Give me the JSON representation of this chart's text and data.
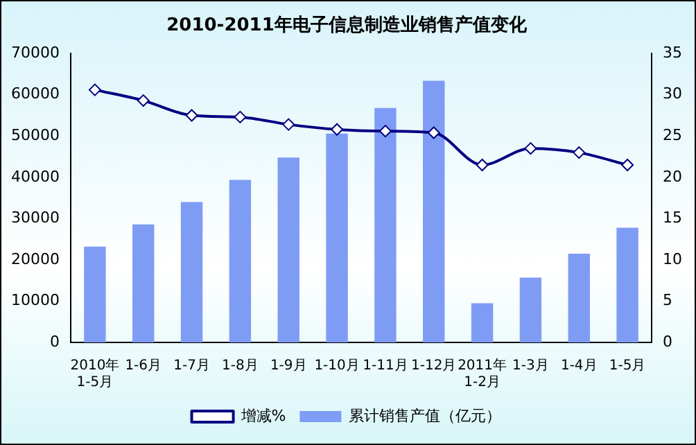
{
  "chart_data": {
    "type": "bar",
    "title": "2010-2011年电子信息制造业销售产值变化",
    "categories": [
      "2010年\n1-5月",
      "1-6月",
      "1-7月",
      "1-8月",
      "1-9月",
      "1-10月",
      "1-11月",
      "1-12月",
      "2011年\n1-2月",
      "1-3月",
      "1-4月",
      "1-5月"
    ],
    "series": [
      {
        "name": "累计销售产值（亿元）",
        "color": "#7f9cf5",
        "values": [
          23200,
          28600,
          34000,
          39400,
          44800,
          50600,
          56800,
          63400,
          9500,
          15700,
          21500,
          27800
        ]
      },
      {
        "name": "增减%",
        "type": "line",
        "axis": "y2",
        "color": "#000080",
        "values": [
          30.6,
          29.3,
          27.5,
          27.3,
          26.4,
          25.8,
          25.6,
          25.4,
          21.5,
          23.5,
          23.0,
          21.5
        ]
      }
    ],
    "ylim": [
      0,
      70000
    ],
    "yticks": [
      0,
      10000,
      20000,
      30000,
      40000,
      50000,
      60000,
      70000
    ],
    "y2lim": [
      0,
      35
    ],
    "y2ticks": [
      0,
      5,
      10,
      15,
      20,
      25,
      30,
      35
    ],
    "grid": false,
    "legend": "bottom",
    "marker": "diamond",
    "line_style": "solid"
  }
}
